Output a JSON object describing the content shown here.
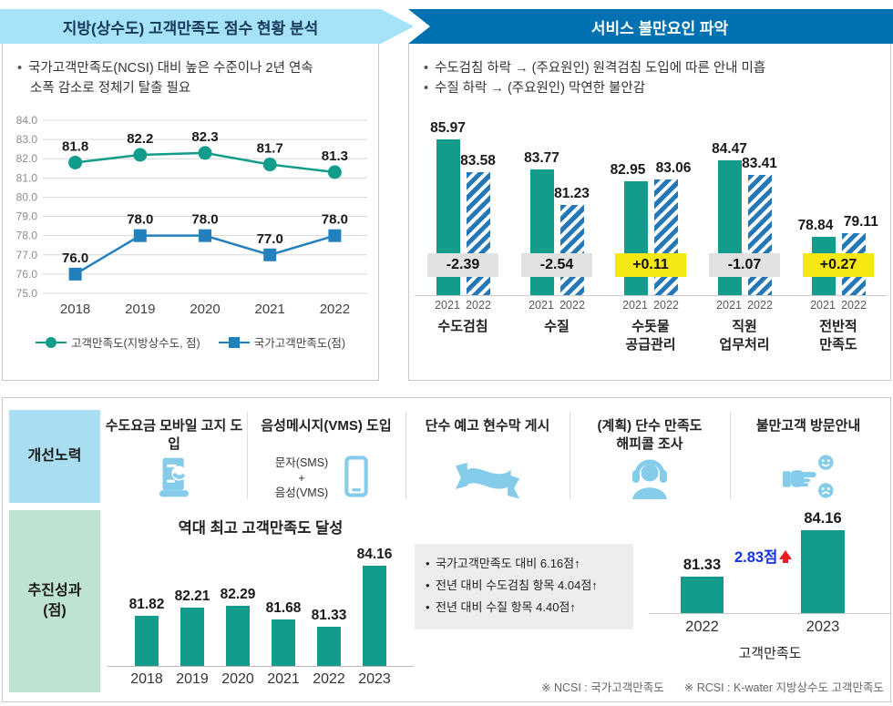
{
  "colors": {
    "teal": "#129c8c",
    "blue": "#2280bd",
    "hatch_blue": "#2478b7",
    "light_banner": "#a6e2f8",
    "dark_banner": "#0271b2",
    "improve_box": "#a9def2",
    "result_box": "#bee3d1",
    "icon_blue": "#85cbea",
    "badge_gray": "#e1e1e1",
    "badge_yellow": "#f6e913",
    "note_bg": "#ededed",
    "delta_blue": "#1532e5",
    "delta_arrow_red": "#ed1c24"
  },
  "left_panel": {
    "title": "지방(상수도) 고객만족도 점수 현황 분석",
    "bullets": [
      [
        "국가고객만족도(NCSI) 대비 높은 수준이나 2년 연속",
        "소폭 감소로 정체기 탈출 필요"
      ]
    ]
  },
  "right_panel": {
    "title": "서비스 불만요인 파악",
    "bullets": [
      [
        "수도검침 하락 → (주요원인) 원격검침 도입에 따른 안내 미흡"
      ],
      [
        "수질 하락 → (주요원인) 막연한 불안감"
      ]
    ]
  },
  "improve_row": {
    "label": "개선노력",
    "items": [
      {
        "title_lines": [
          "수도요금 모바일 고지 도입"
        ],
        "icon": "mobile-bill-icon"
      },
      {
        "title_lines": [
          "음성메시지(VMS) 도입"
        ],
        "subtitle_lines": [
          "문자(SMS)",
          "+",
          "음성(VMS)"
        ],
        "icon": "smartphone-icon"
      },
      {
        "title_lines": [
          "단수 예고 현수막 게시"
        ],
        "icon": "banner-icon"
      },
      {
        "title_lines": [
          "(계획) 단수 만족도",
          "해피콜 조사"
        ],
        "icon": "headset-icon"
      },
      {
        "title_lines": [
          "불만고객 방문안내"
        ],
        "icon": "hand-faces-icon"
      }
    ]
  },
  "result_row": {
    "label_lines": [
      "추진성과",
      "(점)"
    ],
    "notes": [
      "국가고객만족도 대비 6.16점↑",
      "전년 대비 수도검침 항목 4.04점↑",
      "전년 대비 수질 항목 4.40점↑"
    ]
  },
  "footnotes": [
    "※ NCSI : 국가고객만족도",
    "※ RCSI : K-water 지방상수도 고객만족도"
  ],
  "chart_data": [
    {
      "id": "satisfaction-trend",
      "type": "line",
      "categories": [
        "2018",
        "2019",
        "2020",
        "2021",
        "2022"
      ],
      "series": [
        {
          "name": "고객만족도(지방상수도, 점)",
          "marker": "circle",
          "color": "#129c8c",
          "values": [
            81.8,
            82.2,
            82.3,
            81.7,
            81.3
          ]
        },
        {
          "name": "국가고객만족도(점)",
          "marker": "square",
          "color": "#2280bd",
          "values": [
            76.0,
            78.0,
            78.0,
            77.0,
            78.0
          ]
        }
      ],
      "ylim": [
        75.0,
        84.0
      ],
      "ytick_step": 1.0,
      "grid": true,
      "legend_position": "bottom"
    },
    {
      "id": "complaint-factors",
      "type": "bar",
      "categories": [
        [
          "수도검침"
        ],
        [
          "수질"
        ],
        [
          "수돗물",
          "공급관리"
        ],
        [
          "직원",
          "업무처리"
        ],
        [
          "전반적",
          "만족도"
        ]
      ],
      "series": [
        {
          "name": "2021",
          "style": "solid",
          "color": "#129c8c",
          "values": [
            85.97,
            83.77,
            82.95,
            84.47,
            78.84
          ]
        },
        {
          "name": "2022",
          "style": "hatched",
          "color": "#2478b7",
          "values": [
            83.58,
            81.23,
            83.06,
            83.41,
            79.11
          ]
        }
      ],
      "diffs": [
        {
          "label": "-2.39",
          "positive": false
        },
        {
          "label": "-2.54",
          "positive": false
        },
        {
          "label": "+0.11",
          "positive": true
        },
        {
          "label": "-1.07",
          "positive": false
        },
        {
          "label": "+0.27",
          "positive": true
        }
      ]
    },
    {
      "id": "record-high-satisfaction",
      "type": "bar",
      "title": "역대 최고 고객만족도 달성",
      "categories": [
        "2018",
        "2019",
        "2020",
        "2021",
        "2022",
        "2023"
      ],
      "values": [
        81.82,
        82.21,
        82.29,
        81.68,
        81.33,
        84.16
      ],
      "color": "#129c8c"
    },
    {
      "id": "yoy-satisfaction",
      "type": "bar",
      "categories": [
        "2022",
        "2023"
      ],
      "values": [
        81.33,
        84.16
      ],
      "delta_label": "2.83점",
      "xlabel": "고객만족도",
      "color": "#129c8c"
    }
  ]
}
